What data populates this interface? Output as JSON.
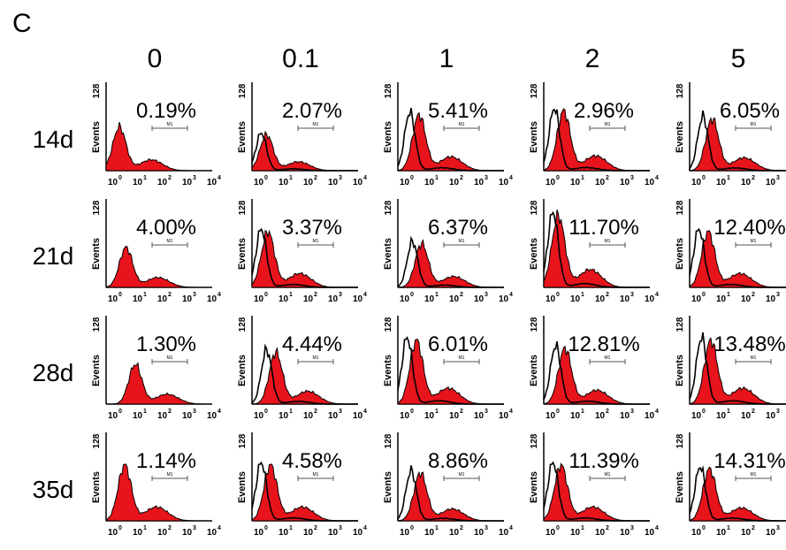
{
  "panel_label": "C",
  "colors": {
    "fill": "#e8141c",
    "line": "#000000",
    "bg": "#ffffff"
  },
  "chart_data": {
    "type": "histogram-grid",
    "columns": [
      "0",
      "0.1",
      "1",
      "2",
      "5"
    ],
    "rows": [
      "14d",
      "21d",
      "28d",
      "35d"
    ],
    "y_axis": {
      "label": "Events",
      "max_tick": "128"
    },
    "x_axis": {
      "scale": "log",
      "ticks": [
        "10",
        "10",
        "10",
        "10",
        "10"
      ],
      "tick_exponents": [
        "0",
        "1",
        "2",
        "3",
        "4"
      ]
    },
    "gate_label": "M1",
    "percentages": [
      [
        "0.19%",
        "2.07%",
        "5.41%",
        "2.96%",
        "6.05%"
      ],
      [
        "4.00%",
        "3.37%",
        "6.37%",
        "11.70%",
        "12.40%"
      ],
      [
        "1.30%",
        "4.44%",
        "6.01%",
        "12.81%",
        "13.48%"
      ],
      [
        "1.14%",
        "4.58%",
        "8.86%",
        "11.39%",
        "14.31%"
      ]
    ],
    "red_peak_log": [
      [
        0.5,
        0.55,
        0.8,
        0.75,
        0.85
      ],
      [
        0.75,
        0.6,
        0.9,
        0.55,
        0.7
      ],
      [
        1.1,
        0.9,
        0.7,
        0.8,
        0.8
      ],
      [
        0.7,
        0.7,
        0.85,
        0.65,
        0.75
      ]
    ],
    "red_peak_height": [
      [
        0.55,
        0.45,
        0.7,
        0.75,
        0.65
      ],
      [
        0.5,
        0.7,
        0.55,
        0.9,
        0.7
      ],
      [
        0.5,
        0.65,
        0.8,
        0.7,
        0.8
      ],
      [
        0.7,
        0.7,
        0.6,
        0.7,
        0.65
      ]
    ],
    "black_overlay": [
      [
        false,
        true,
        true,
        true,
        true
      ],
      [
        false,
        true,
        true,
        true,
        true
      ],
      [
        false,
        true,
        true,
        true,
        true
      ],
      [
        false,
        true,
        true,
        true,
        true
      ]
    ]
  }
}
